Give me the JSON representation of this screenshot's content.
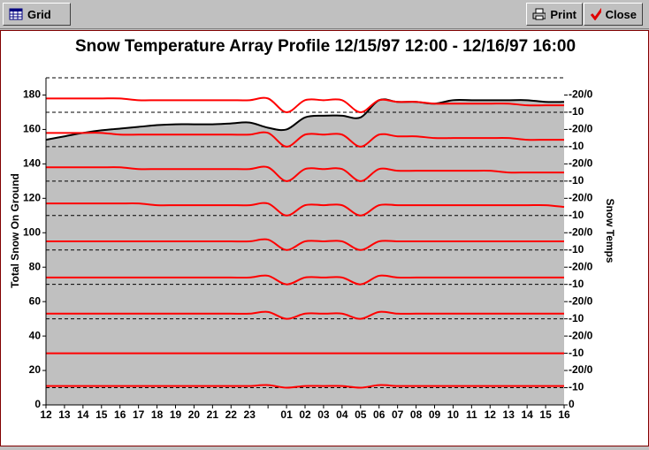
{
  "toolbar": {
    "buttons": [
      "Grid",
      "Print",
      "Close"
    ]
  },
  "chart_data": {
    "type": "line",
    "title": "Snow Temperature Array Profile 12/15/97 12:00 - 12/16/97 16:00",
    "y_label": "Total Snow On Ground",
    "y2_label": "Snow Temps",
    "categories": [
      "12",
      "13",
      "14",
      "15",
      "16",
      "17",
      "18",
      "19",
      "20",
      "21",
      "22",
      "23",
      null,
      "01",
      "02",
      "03",
      "04",
      "05",
      "06",
      "07",
      "08",
      "09",
      "10",
      "11",
      "12",
      "13",
      "14",
      "15",
      "16"
    ],
    "ylim": [
      0,
      190
    ],
    "yticks": [
      0,
      20,
      40,
      60,
      80,
      100,
      120,
      140,
      160,
      180
    ],
    "y2lim": [
      0,
      190
    ],
    "y2ticks": [
      0,
      {
        "value": 10,
        "label": "-10"
      },
      {
        "value": 20,
        "label": "-20/0"
      },
      {
        "value": 30,
        "label": "-10"
      },
      {
        "value": 40,
        "label": "-20/0"
      },
      {
        "value": 50,
        "label": "-10"
      },
      {
        "value": 60,
        "label": "-20/0"
      },
      {
        "value": 70,
        "label": "-10"
      },
      {
        "value": 80,
        "label": "-20/0"
      },
      {
        "value": 90,
        "label": "-10"
      },
      {
        "value": 100,
        "label": "-20/0"
      },
      {
        "value": 110,
        "label": "-10"
      },
      {
        "value": 120,
        "label": "-20/0"
      },
      {
        "value": 130,
        "label": "-10"
      },
      {
        "value": 140,
        "label": "-20/0"
      },
      {
        "value": 150,
        "label": "-10"
      },
      {
        "value": 160,
        "label": "-20/0"
      },
      {
        "value": 170,
        "label": "-10"
      },
      {
        "value": 180,
        "label": "-20/0"
      }
    ],
    "grid_lines": [
      10,
      30,
      50,
      70,
      90,
      110,
      130,
      150,
      170,
      190
    ],
    "area_color": "#c0c0c0",
    "series": [
      {
        "color": "#000000",
        "fill": true,
        "values": [
          154,
          156,
          158,
          159.5,
          160.5,
          161.5,
          162.5,
          163,
          163,
          163,
          163.5,
          164,
          161,
          160,
          167,
          168,
          168,
          167,
          177,
          176,
          176,
          175,
          177,
          177,
          177,
          177,
          177,
          176,
          176
        ]
      },
      {
        "color": "#ff0000",
        "axis": "y2",
        "values": [
          178,
          178,
          178,
          178,
          178,
          177,
          177,
          177,
          177,
          177,
          177,
          177,
          178,
          170,
          177,
          177,
          177,
          170,
          177,
          176,
          176,
          175,
          175,
          175,
          175,
          175,
          174,
          174,
          174
        ]
      },
      {
        "color": "#ff0000",
        "axis": "y2",
        "values": [
          158,
          158,
          158,
          158,
          157,
          157,
          157,
          157,
          157,
          157,
          157,
          157,
          158,
          150,
          157,
          157,
          157,
          150,
          157,
          156,
          156,
          155,
          155,
          155,
          155,
          155,
          154,
          154,
          154
        ]
      },
      {
        "color": "#ff0000",
        "axis": "y2",
        "values": [
          138,
          138,
          138,
          138,
          138,
          137,
          137,
          137,
          137,
          137,
          137,
          137,
          138,
          130,
          137,
          137,
          137,
          130,
          137,
          136,
          136,
          136,
          136,
          136,
          136,
          135,
          135,
          135,
          135
        ]
      },
      {
        "color": "#ff0000",
        "axis": "y2",
        "values": [
          117,
          117,
          117,
          117,
          117,
          117,
          116,
          116,
          116,
          116,
          116,
          116,
          117,
          110,
          116,
          116,
          116,
          110,
          116,
          116,
          116,
          116,
          116,
          116,
          116,
          116,
          116,
          116,
          115
        ]
      },
      {
        "color": "#ff0000",
        "axis": "y2",
        "values": [
          95,
          95,
          95,
          95,
          95,
          95,
          95,
          95,
          95,
          95,
          95,
          95,
          96,
          90,
          95,
          95,
          95,
          90,
          95,
          95,
          95,
          95,
          95,
          95,
          95,
          95,
          95,
          95,
          95
        ]
      },
      {
        "color": "#ff0000",
        "axis": "y2",
        "values": [
          74,
          74,
          74,
          74,
          74,
          74,
          74,
          74,
          74,
          74,
          74,
          74,
          75,
          70,
          74,
          74,
          74,
          70,
          75,
          74,
          74,
          74,
          74,
          74,
          74,
          74,
          74,
          74,
          74
        ]
      },
      {
        "color": "#ff0000",
        "axis": "y2",
        "values": [
          53,
          53,
          53,
          53,
          53,
          53,
          53,
          53,
          53,
          53,
          53,
          53,
          54,
          50,
          53,
          53,
          53,
          50,
          54,
          53,
          53,
          53,
          53,
          53,
          53,
          53,
          53,
          53,
          53
        ]
      },
      {
        "color": "#ff0000",
        "axis": "y2",
        "values": [
          30,
          30,
          30,
          30,
          30,
          30,
          30,
          30,
          30,
          30,
          30,
          30,
          30,
          30,
          30,
          30,
          30,
          30,
          30,
          30,
          30,
          30,
          30,
          30,
          30,
          30,
          30,
          30,
          30
        ]
      },
      {
        "color": "#ff0000",
        "axis": "y2",
        "values": [
          11,
          11,
          11,
          11,
          11,
          11,
          11,
          11,
          11,
          11,
          11,
          11,
          11.5,
          10,
          11,
          11,
          11,
          10,
          11.5,
          11,
          11,
          11,
          11,
          11,
          11,
          11,
          11,
          11,
          11
        ]
      }
    ]
  }
}
